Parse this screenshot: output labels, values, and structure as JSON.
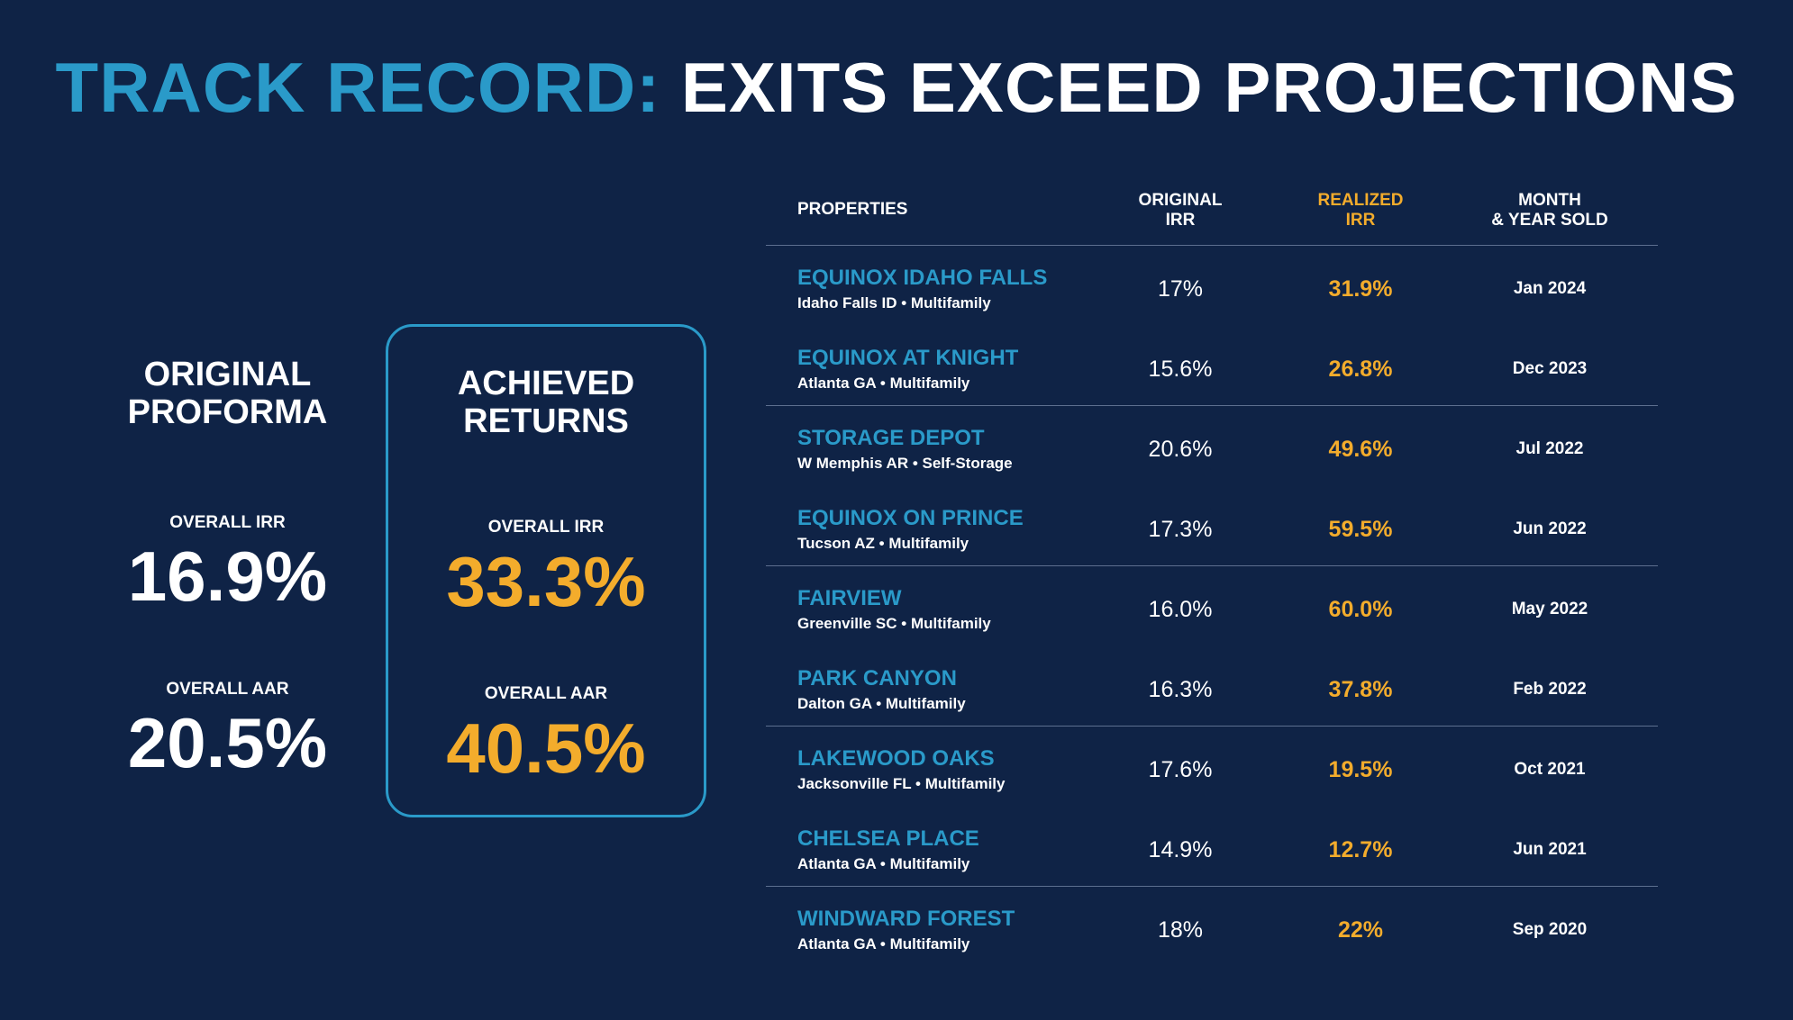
{
  "title": {
    "accent": "TRACK RECORD:",
    "main": "EXITS EXCEED PROJECTIONS"
  },
  "original": {
    "heading_line1": "ORIGINAL",
    "heading_line2": "PROFORMA",
    "irr_label": "OVERALL IRR",
    "irr_value": "16.9%",
    "aar_label": "OVERALL AAR",
    "aar_value": "20.5%"
  },
  "achieved": {
    "heading_line1": "ACHIEVED",
    "heading_line2": "RETURNS",
    "irr_label": "OVERALL IRR",
    "irr_value": "33.3%",
    "aar_label": "OVERALL AAR",
    "aar_value": "40.5%"
  },
  "table": {
    "headers": {
      "properties": "PROPERTIES",
      "original_line1": "ORIGINAL",
      "original_line2": "IRR",
      "realized_line1": "REALIZED",
      "realized_line2": "IRR",
      "month_line1": "MONTH",
      "month_line2": "& YEAR SOLD"
    },
    "rows": [
      {
        "name": "EQUINOX IDAHO FALLS",
        "sub": "Idaho Falls ID • Multifamily",
        "original": "17%",
        "realized": "31.9%",
        "sold": "Jan 2024"
      },
      {
        "name": "EQUINOX AT KNIGHT",
        "sub": "Atlanta GA • Multifamily",
        "original": "15.6%",
        "realized": "26.8%",
        "sold": "Dec 2023"
      },
      {
        "name": "STORAGE DEPOT",
        "sub": "W Memphis AR • Self-Storage",
        "original": "20.6%",
        "realized": "49.6%",
        "sold": "Jul 2022"
      },
      {
        "name": "EQUINOX ON PRINCE",
        "sub": "Tucson AZ • Multifamily",
        "original": "17.3%",
        "realized": "59.5%",
        "sold": "Jun 2022"
      },
      {
        "name": "FAIRVIEW",
        "sub": "Greenville SC • Multifamily",
        "original": "16.0%",
        "realized": "60.0%",
        "sold": "May 2022"
      },
      {
        "name": "PARK CANYON",
        "sub": "Dalton GA • Multifamily",
        "original": "16.3%",
        "realized": "37.8%",
        "sold": "Feb 2022"
      },
      {
        "name": "LAKEWOOD OAKS",
        "sub": "Jacksonville FL • Multifamily",
        "original": "17.6%",
        "realized": "19.5%",
        "sold": "Oct 2021"
      },
      {
        "name": "CHELSEA PLACE",
        "sub": "Atlanta GA • Multifamily",
        "original": "14.9%",
        "realized": "12.7%",
        "sold": "Jun 2021"
      },
      {
        "name": "WINDWARD FOREST",
        "sub": "Atlanta GA • Multifamily",
        "original": "18%",
        "realized": "22%",
        "sold": "Sep 2020"
      }
    ]
  }
}
